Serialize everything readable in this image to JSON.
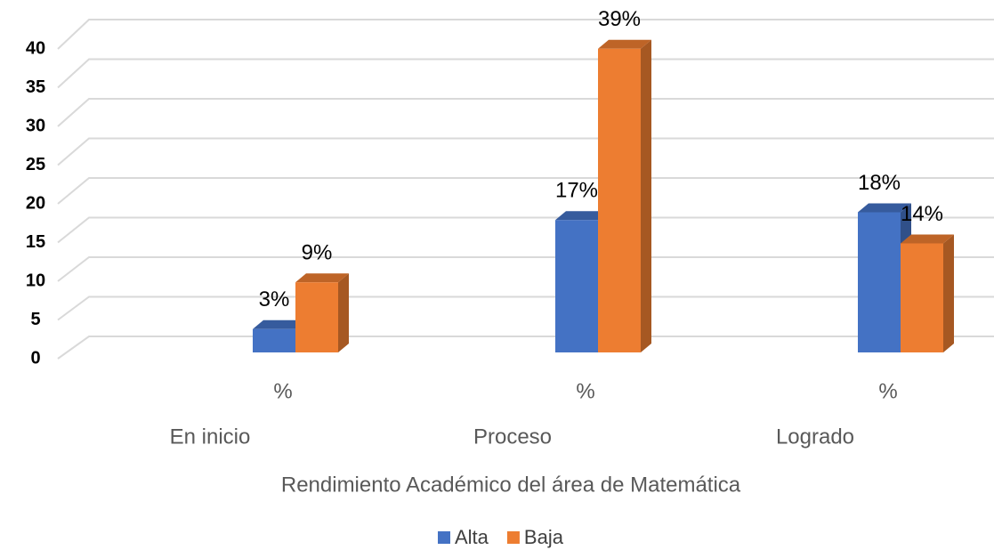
{
  "chart_data": {
    "type": "bar3d",
    "categories": [
      "%",
      "%",
      "%"
    ],
    "groups": [
      "En inicio",
      "Proceso",
      "Logrado"
    ],
    "x_label": "Rendimiento Académico del área de Matemática",
    "series": [
      {
        "name": "Alta",
        "color": "#4472c4",
        "values": [
          3,
          17,
          18
        ],
        "value_labels": [
          "3%",
          "17%",
          "18%"
        ]
      },
      {
        "name": "Baja",
        "color": "#ed7d31",
        "values": [
          9,
          39,
          14
        ],
        "value_labels": [
          "9%",
          "39%",
          "14%"
        ]
      }
    ],
    "ylim": [
      0,
      40
    ],
    "yticks": [
      0,
      5,
      10,
      15,
      20,
      25,
      30,
      35,
      40
    ],
    "grid": true,
    "legend": "bottom"
  }
}
